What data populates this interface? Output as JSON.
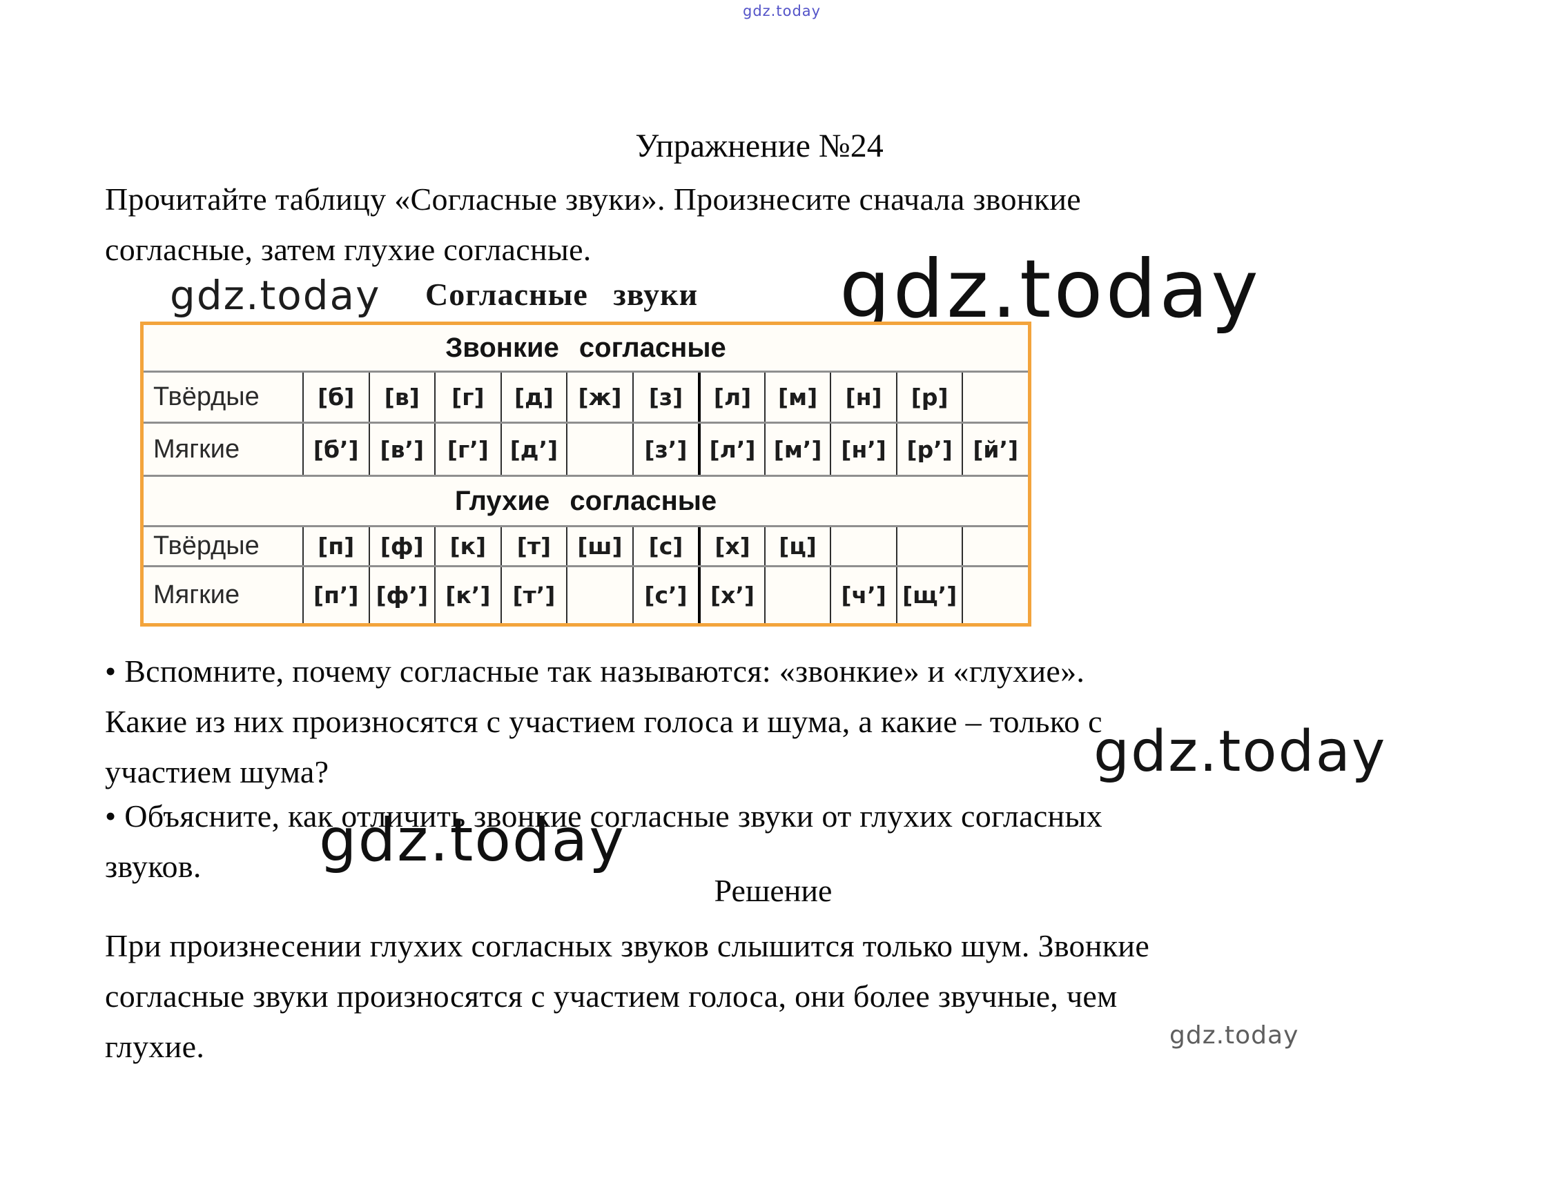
{
  "watermarks": {
    "top": "gdz.today",
    "left": "gdz.today",
    "right": "gdz.today",
    "middle": "gdz.today",
    "big": "gdz.today",
    "bottom": "gdz.today"
  },
  "exercise": {
    "title": "Упражнение №24",
    "intro": "Прочитайте таблицу «Согласные звуки». Произнесите сначала звонкие\nсогласные, затем глухие согласные.",
    "bullet1": "• Вспомните, почему согласные так называются: «звонкие» и «глухие».\nКакие из них произносятся с участием голоса и шума, а какие – только с\nучастием шума?",
    "bullet2": "• Объясните, как отличить звонкие согласные звуки от глухих согласных\nзвуков."
  },
  "consonants_table": {
    "caption": "Согласные звуки",
    "border_color": "#F3A43C",
    "sections": [
      {
        "header": "Звонкие согласные",
        "rows": [
          {
            "label": "Твёрдые",
            "cells": [
              "[б]",
              "[в]",
              "[г]",
              "[д]",
              "[ж]",
              "[з]",
              "[л]",
              "[м]",
              "[н]",
              "[р]",
              ""
            ]
          },
          {
            "label": "Мягкие",
            "cells": [
              "[б’]",
              "[в’]",
              "[г’]",
              "[д’]",
              "",
              "[з’]",
              "[л’]",
              "[м’]",
              "[н’]",
              "[р’]",
              "[й’]"
            ]
          }
        ]
      },
      {
        "header": "Глухие согласные",
        "rows": [
          {
            "label": "Твёрдые",
            "cells": [
              "[п]",
              "[ф]",
              "[к]",
              "[т]",
              "[ш]",
              "[с]",
              "[х]",
              "[ц]",
              "",
              "",
              ""
            ]
          },
          {
            "label": "Мягкие",
            "cells": [
              "[п’]",
              "[ф’]",
              "[к’]",
              "[т’]",
              "",
              "[с’]",
              "[х’]",
              "",
              "[ч’]",
              "[щ’]",
              ""
            ]
          }
        ]
      }
    ]
  },
  "solution": {
    "heading": "Решение",
    "text": "При произнесении глухих согласных звуков слышится только шум. Звонкие\nсогласные звуки произносятся с участием голоса, они более звучные, чем\nглухие."
  }
}
